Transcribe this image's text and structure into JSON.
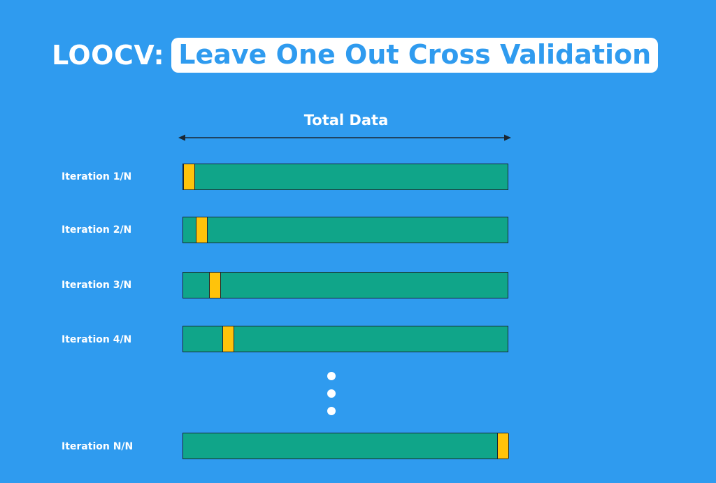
{
  "title": {
    "prefix": "LOOCV:",
    "highlight": "Leave One Out Cross Validation"
  },
  "total_data_label": "Total Data",
  "iterations": [
    {
      "label": "Iteration 1/N",
      "held_out_index": 1
    },
    {
      "label": "Iteration 2/N",
      "held_out_index": 2
    },
    {
      "label": "Iteration 3/N",
      "held_out_index": 3
    },
    {
      "label": "Iteration 4/N",
      "held_out_index": 4
    },
    {
      "label": "Iteration N/N",
      "held_out_index": "N"
    }
  ],
  "colors": {
    "background": "#2f9bef",
    "training_segment": "#10a589",
    "held_out_segment": "#ffc30b",
    "outline": "#1a2733"
  }
}
